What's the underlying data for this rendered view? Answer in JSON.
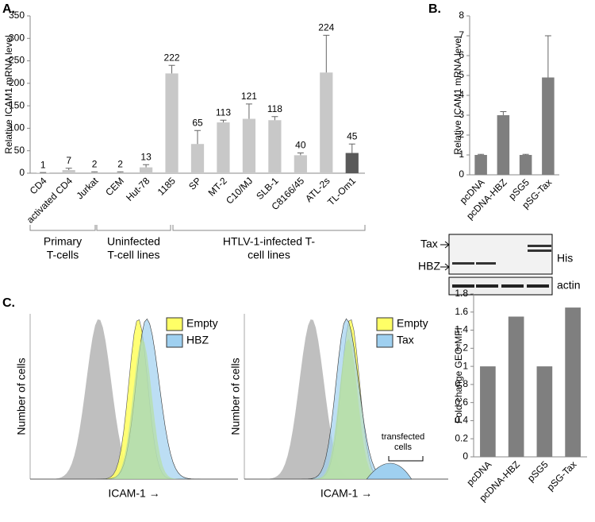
{
  "chart_data": [
    {
      "type": "bar",
      "panel": "A.",
      "ylabel": "Relative ICAM1 mRNA level",
      "categories": [
        "CD4",
        "activated CD4",
        "Jurkat",
        "CEM",
        "Hut-78",
        "1185",
        "SP",
        "MT-2",
        "C10/MJ",
        "SLB-1",
        "C8166/45",
        "ATL-2s",
        "TL-Om1"
      ],
      "values": [
        1,
        7,
        2,
        2,
        13,
        222,
        65,
        113,
        121,
        118,
        40,
        224,
        45
      ],
      "errors": [
        0.5,
        4,
        1,
        1,
        6,
        18,
        30,
        5,
        33,
        8,
        5,
        83,
        20
      ],
      "colors": [
        "#c8c8c8",
        "#c8c8c8",
        "#c8c8c8",
        "#c8c8c8",
        "#c8c8c8",
        "#c8c8c8",
        "#c8c8c8",
        "#c8c8c8",
        "#c8c8c8",
        "#c8c8c8",
        "#c8c8c8",
        "#c8c8c8",
        "#595959"
      ],
      "ylim": [
        0,
        350
      ],
      "yticks": [
        0,
        50,
        100,
        150,
        200,
        250,
        300,
        350
      ],
      "groups": [
        [
          "Primary",
          "T-cells"
        ],
        [
          "Uninfected",
          "T-cell lines"
        ],
        [
          "HTLV-1-infected T-",
          "cell lines"
        ]
      ]
    },
    {
      "type": "bar",
      "panel": "B.",
      "ylabel": "Relative ICAM1 mRNA level",
      "categories": [
        "pcDNA",
        "pcDNA-HBZ",
        "pSG5",
        "pSG-Tax"
      ],
      "values": [
        1,
        3,
        1,
        4.9
      ],
      "errors": [
        0.03,
        0.18,
        0.03,
        2.1
      ],
      "colors": [
        "#7f7f7f",
        "#7f7f7f",
        "#7f7f7f",
        "#7f7f7f"
      ],
      "ylim": [
        0,
        8
      ],
      "yticks": [
        0,
        1,
        2,
        3,
        4,
        5,
        6,
        7,
        8
      ],
      "blot_labels": [
        "Tax",
        "HBZ",
        "His",
        "actin"
      ]
    },
    {
      "type": "bar",
      "panel": "C.",
      "ylabel": "Fold change GEO-MFI",
      "categories": [
        "pcDNA",
        "pcDNA-HBZ",
        "pSG5",
        "pSG-Tax"
      ],
      "values": [
        1,
        1.55,
        1,
        1.65
      ],
      "colors": [
        "#7f7f7f",
        "#7f7f7f",
        "#7f7f7f",
        "#7f7f7f"
      ],
      "ylim": [
        0,
        1.8
      ],
      "yticks": [
        0,
        0.2,
        0.4,
        0.6,
        0.8,
        1,
        1.2,
        1.4,
        1.6,
        1.8
      ]
    }
  ],
  "histograms": [
    {
      "ylabel": "Number of cells",
      "xlabel": "ICAM-1 →",
      "legend": [
        "Empty",
        "HBZ"
      ]
    },
    {
      "ylabel": "Number of cells",
      "xlabel": "ICAM-1 →",
      "legend": [
        "Empty",
        "Tax"
      ],
      "annotation": [
        "transfected",
        "cells"
      ]
    }
  ]
}
